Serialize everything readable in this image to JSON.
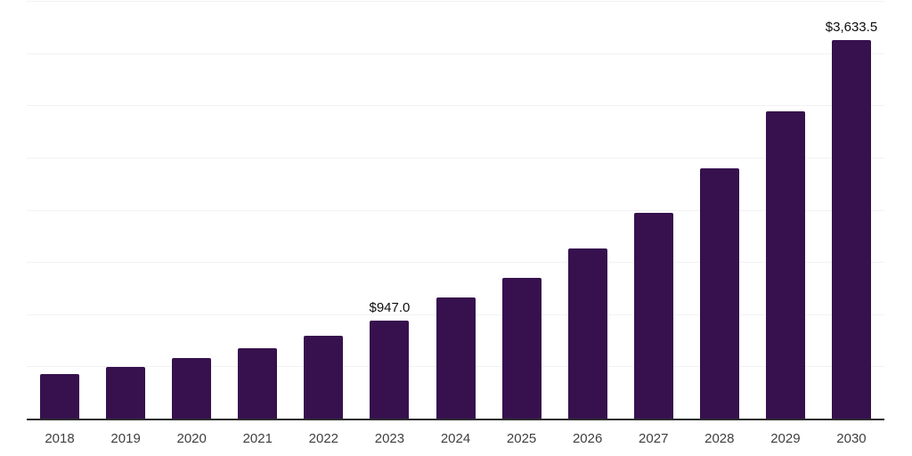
{
  "chart_data": {
    "type": "bar",
    "title": "",
    "xlabel": "",
    "ylabel": "",
    "categories": [
      "2018",
      "2019",
      "2020",
      "2021",
      "2022",
      "2023",
      "2024",
      "2025",
      "2026",
      "2027",
      "2028",
      "2029",
      "2030"
    ],
    "values": [
      435,
      505,
      585,
      685,
      805,
      947.0,
      1165,
      1355,
      1635,
      1975,
      2405,
      2950,
      3633.5
    ],
    "data_labels": {
      "2023": "$947.0",
      "2030": "$3,633.5"
    },
    "ylim": [
      0,
      4000
    ],
    "gridline_step": 500,
    "grid": true,
    "legend": false,
    "colors": {
      "bar": "#36114E",
      "axis_line": "#2e2e2e",
      "gridline": "#f2f2f2",
      "tick_label": "#3f3f3f",
      "value_label": "#0d0d0d"
    }
  }
}
